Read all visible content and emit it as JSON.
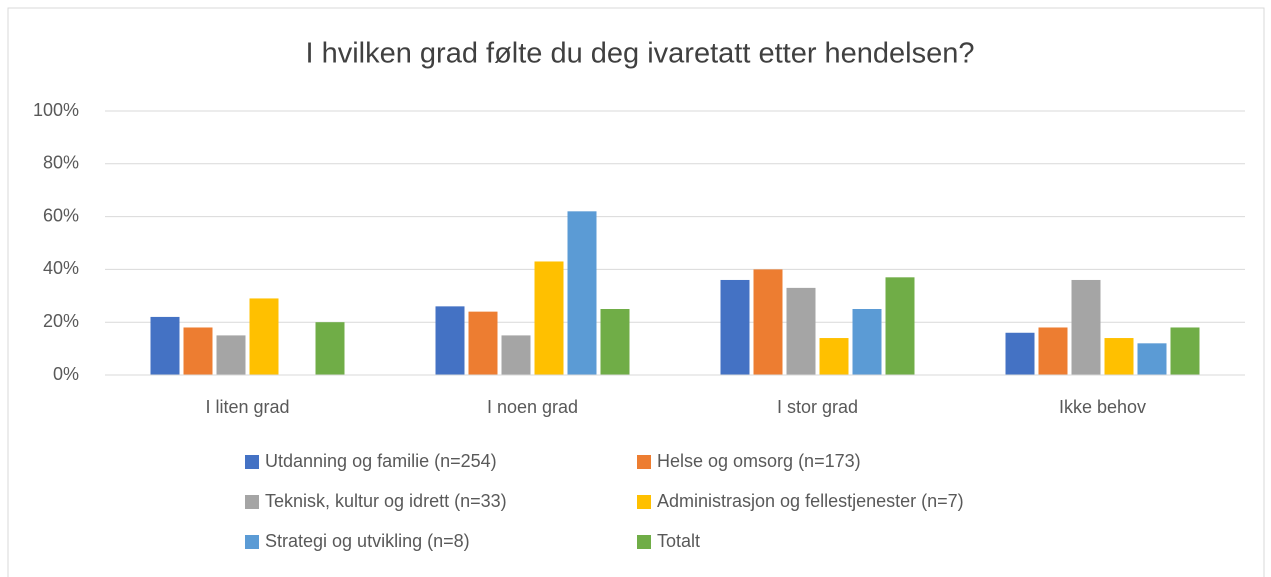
{
  "chart_data": {
    "type": "bar",
    "title": "I hvilken grad følte du deg ivaretatt etter hendelsen?",
    "categories": [
      "I liten grad",
      "I noen grad",
      "I stor grad",
      "Ikke behov"
    ],
    "series": [
      {
        "name": "Utdanning og familie (n=254)",
        "color": "#4472c4",
        "values": [
          22,
          26,
          36,
          16
        ]
      },
      {
        "name": "Helse og omsorg (n=173)",
        "color": "#ed7d31",
        "values": [
          18,
          24,
          40,
          18
        ]
      },
      {
        "name": "Teknisk, kultur og idrett (n=33)",
        "color": "#a5a5a5",
        "values": [
          15,
          15,
          33,
          36
        ]
      },
      {
        "name": "Administrasjon og fellestjenester (n=7)",
        "color": "#ffc000",
        "values": [
          29,
          43,
          14,
          14
        ]
      },
      {
        "name": "Strategi og utvikling (n=8)",
        "color": "#5b9bd5",
        "values": [
          0,
          62,
          25,
          12
        ]
      },
      {
        "name": "Totalt",
        "color": "#70ad47",
        "values": [
          20,
          25,
          37,
          18
        ]
      }
    ],
    "ylim": [
      0,
      100
    ],
    "yticks": [
      {
        "value": 0,
        "label": "0%"
      },
      {
        "value": 20,
        "label": "20%"
      },
      {
        "value": 40,
        "label": "40%"
      },
      {
        "value": 60,
        "label": "60%"
      },
      {
        "value": 80,
        "label": "80%"
      },
      {
        "value": 100,
        "label": "100%"
      }
    ],
    "grid": true,
    "legend": "bottom"
  }
}
